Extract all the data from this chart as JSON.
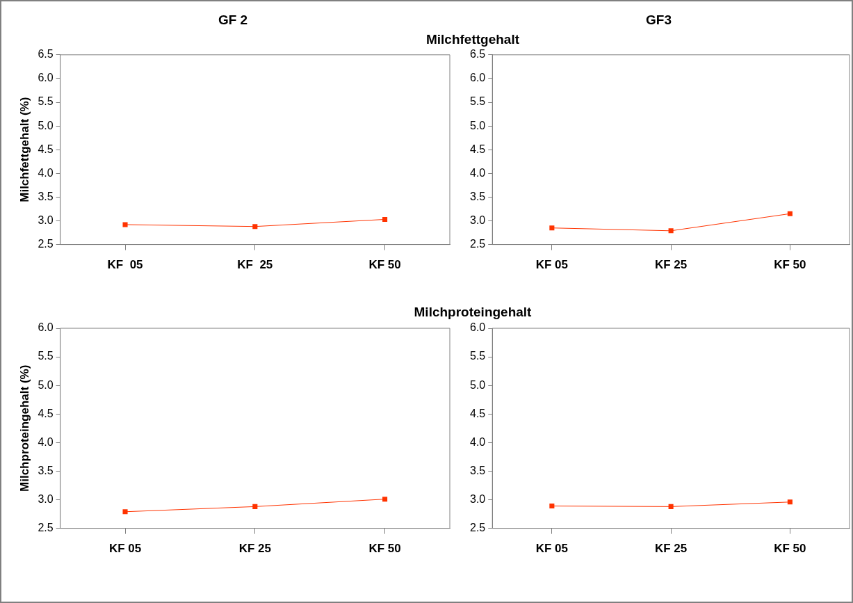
{
  "chart_data": [
    {
      "type": "line",
      "title": "GF 2",
      "annotations": [
        "Milchfettgehalt"
      ],
      "ylabel": "Milchfettgehalt (%)",
      "categories": [
        "KF  05",
        "KF  25",
        "KF 50"
      ],
      "series": [
        {
          "color": "#ff3300",
          "values": [
            2.92,
            2.88,
            3.03
          ]
        }
      ],
      "ylim": [
        2.5,
        6.5
      ],
      "yticks": [
        {
          "value": 2.5,
          "label": "2.5"
        },
        {
          "value": 3,
          "label": "3.0"
        },
        {
          "value": 3.5,
          "label": "3.5"
        },
        {
          "value": 4,
          "label": "4.0"
        },
        {
          "value": 4.5,
          "label": "4.5"
        },
        {
          "value": 5,
          "label": "5.0"
        },
        {
          "value": 5.5,
          "label": "5.5"
        },
        {
          "value": 6,
          "label": "6.0"
        },
        {
          "value": 6.5,
          "label": "6.5"
        }
      ],
      "marker": "square",
      "grid": false,
      "legend": false
    },
    {
      "type": "line",
      "title": "GF3",
      "categories": [
        "KF 05",
        "KF 25",
        "KF 50"
      ],
      "series": [
        {
          "color": "#ff3300",
          "values": [
            2.85,
            2.79,
            3.15
          ]
        }
      ],
      "ylim": [
        2.5,
        6.5
      ],
      "yticks": [
        {
          "value": 2.5,
          "label": "2.5"
        },
        {
          "value": 3,
          "label": "3.0"
        },
        {
          "value": 3.5,
          "label": "3.5"
        },
        {
          "value": 4,
          "label": "4.0"
        },
        {
          "value": 4.5,
          "label": "4.5"
        },
        {
          "value": 5,
          "label": "5.0"
        },
        {
          "value": 5.5,
          "label": "5.5"
        },
        {
          "value": 6,
          "label": "6.0"
        },
        {
          "value": 6.5,
          "label": "6.5"
        }
      ],
      "marker": "square",
      "grid": false,
      "legend": false
    },
    {
      "type": "line",
      "annotations": [
        "Milchproteingehalt"
      ],
      "ylabel": "Milchproteingehalt (%)",
      "categories": [
        "KF 05",
        "KF 25",
        "KF 50"
      ],
      "series": [
        {
          "color": "#ff3300",
          "values": [
            2.79,
            2.88,
            3.01
          ]
        }
      ],
      "ylim": [
        2.5,
        6
      ],
      "yticks": [
        {
          "value": 2.5,
          "label": "2.5"
        },
        {
          "value": 3,
          "label": "3.0"
        },
        {
          "value": 3.5,
          "label": "3.5"
        },
        {
          "value": 4,
          "label": "4.0"
        },
        {
          "value": 4.5,
          "label": "4.5"
        },
        {
          "value": 5,
          "label": "5.0"
        },
        {
          "value": 5.5,
          "label": "5.5"
        },
        {
          "value": 6,
          "label": "6.0"
        }
      ],
      "marker": "square",
      "grid": false,
      "legend": false
    },
    {
      "type": "line",
      "categories": [
        "KF 05",
        "KF 25",
        "KF 50"
      ],
      "series": [
        {
          "color": "#ff3300",
          "values": [
            2.89,
            2.88,
            2.96
          ]
        }
      ],
      "ylim": [
        2.5,
        6
      ],
      "yticks": [
        {
          "value": 2.5,
          "label": "2.5"
        },
        {
          "value": 3,
          "label": "3.0"
        },
        {
          "value": 3.5,
          "label": "3.5"
        },
        {
          "value": 4,
          "label": "4.0"
        },
        {
          "value": 4.5,
          "label": "4.5"
        },
        {
          "value": 5,
          "label": "5.0"
        },
        {
          "value": 5.5,
          "label": "5.5"
        },
        {
          "value": 6,
          "label": "6.0"
        }
      ],
      "marker": "square",
      "grid": false,
      "legend": false
    }
  ]
}
